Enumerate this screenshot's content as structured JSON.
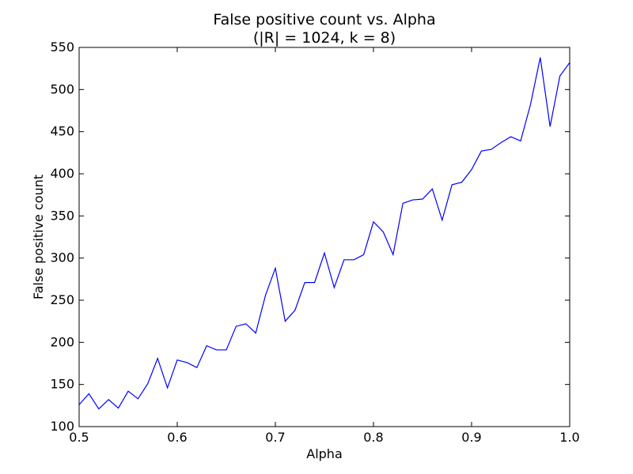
{
  "chart_data": {
    "type": "line",
    "title": "False positive count vs. Alpha",
    "subtitle": "(|R| = 1024, k = 8)",
    "xlabel": "Alpha",
    "ylabel": "False positive count",
    "xlim": [
      0.5,
      1.0
    ],
    "ylim": [
      100,
      550
    ],
    "xticks": [
      0.5,
      0.6,
      0.7,
      0.8,
      0.9,
      1.0
    ],
    "xtick_labels": [
      "0.5",
      "0.6",
      "0.7",
      "0.8",
      "0.9",
      "1.0"
    ],
    "yticks": [
      100,
      150,
      200,
      250,
      300,
      350,
      400,
      450,
      500,
      550
    ],
    "ytick_labels": [
      "100",
      "150",
      "200",
      "250",
      "300",
      "350",
      "400",
      "450",
      "500",
      "550"
    ],
    "grid": false,
    "legend": "none",
    "line_color": "#0000ff",
    "series": [
      {
        "x": [
          0.5,
          0.51,
          0.52,
          0.53,
          0.54,
          0.55,
          0.56,
          0.57,
          0.58,
          0.59,
          0.6,
          0.61,
          0.62,
          0.63,
          0.64,
          0.65,
          0.66,
          0.67,
          0.68,
          0.69,
          0.7,
          0.71,
          0.72,
          0.73,
          0.74,
          0.75,
          0.76,
          0.77,
          0.78,
          0.79,
          0.8,
          0.81,
          0.82,
          0.83,
          0.84,
          0.85,
          0.86,
          0.87,
          0.88,
          0.89,
          0.9,
          0.91,
          0.92,
          0.93,
          0.94,
          0.95,
          0.96,
          0.97,
          0.98,
          0.99,
          1.0
        ],
        "y": [
          126,
          139,
          121,
          132,
          122,
          142,
          133,
          151,
          181,
          146,
          179,
          176,
          170,
          196,
          191,
          191,
          219,
          222,
          211,
          256,
          288,
          225,
          238,
          271,
          271,
          306,
          265,
          298,
          298,
          304,
          343,
          331,
          304,
          365,
          369,
          370,
          382,
          345,
          387,
          390,
          405,
          427,
          429,
          437,
          444,
          439,
          482,
          538,
          456,
          516,
          532
        ]
      }
    ]
  }
}
